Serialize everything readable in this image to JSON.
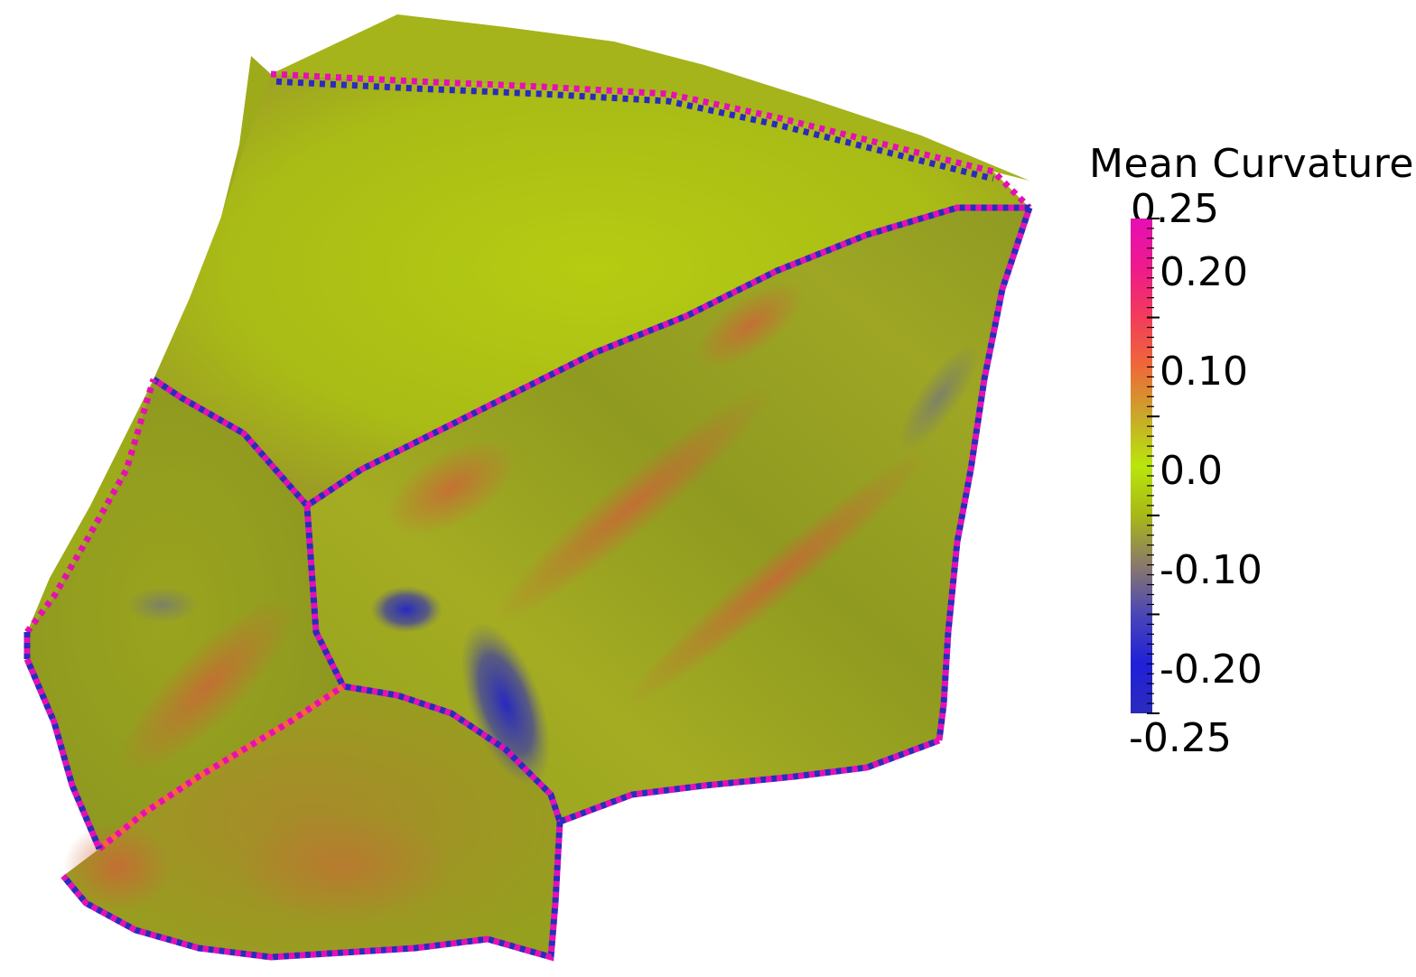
{
  "legend": {
    "title": "Mean Curvature",
    "max_label": "0.25",
    "min_label": "-0.25",
    "range": [
      -0.25,
      0.25
    ],
    "tick_labels": [
      "0.20",
      "0.10",
      "0.0",
      "-0.10",
      "-0.20"
    ],
    "tick_values": [
      0.2,
      0.1,
      0.0,
      -0.1,
      -0.2
    ],
    "colormap": [
      {
        "value": 0.25,
        "color": "#e60fb4"
      },
      {
        "value": 0.2,
        "color": "#ee1a8c"
      },
      {
        "value": 0.15,
        "color": "#f23c5a"
      },
      {
        "value": 0.1,
        "color": "#ee6a38"
      },
      {
        "value": 0.05,
        "color": "#c9a82a"
      },
      {
        "value": 0.0,
        "color": "#b9e60c"
      },
      {
        "value": -0.05,
        "color": "#a8b818"
      },
      {
        "value": -0.1,
        "color": "#8a7a6a"
      },
      {
        "value": -0.15,
        "color": "#4a46b8"
      },
      {
        "value": -0.2,
        "color": "#2020d8"
      },
      {
        "value": -0.25,
        "color": "#2b2bbd"
      }
    ]
  },
  "scene": {
    "surface_base_color": "#a6b81a",
    "edge_colors": [
      "#e60fb4",
      "#2b2bbd",
      "#ee6a38",
      "#d03030"
    ],
    "background": "#ffffff"
  }
}
